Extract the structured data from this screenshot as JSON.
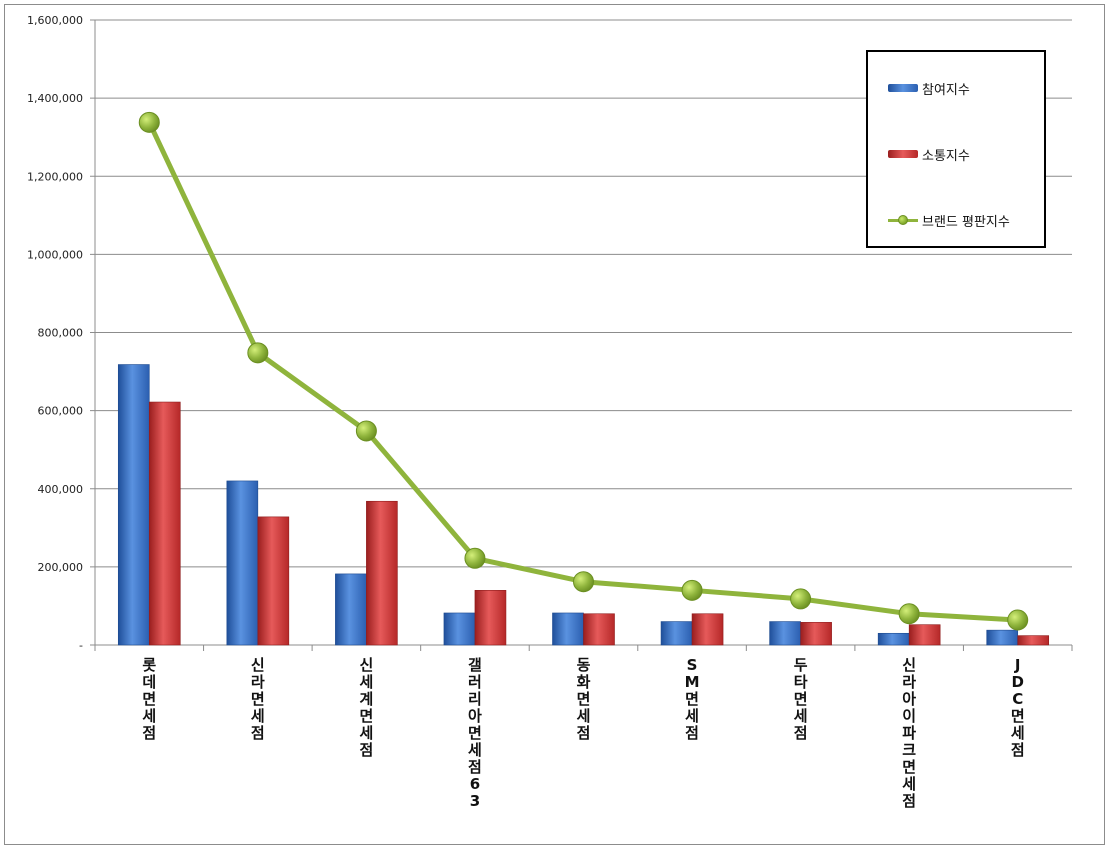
{
  "chart_data": {
    "type": "bar",
    "categories": [
      "롯데면세점",
      "신라면세점",
      "신세계면세점",
      "갤러리아면세점63",
      "동화면세점",
      "SM면세점",
      "두타면세점",
      "신라아이파크면세점",
      "JDC면세점"
    ],
    "series": [
      {
        "name": "참여지수",
        "type": "bar",
        "color": "#3a72c4",
        "values": [
          718000,
          420000,
          182000,
          82000,
          82000,
          60000,
          60000,
          30000,
          38000
        ]
      },
      {
        "name": "소통지수",
        "type": "bar",
        "color": "#d23a3a",
        "values": [
          622000,
          328000,
          368000,
          140000,
          80000,
          80000,
          58000,
          52000,
          24000
        ]
      },
      {
        "name": "브랜드 평판지수",
        "type": "line",
        "color": "#8fb43c",
        "values": [
          1338000,
          748000,
          548000,
          222000,
          162000,
          140000,
          118000,
          80000,
          64000
        ]
      }
    ],
    "ylim": [
      0,
      1600000
    ],
    "yticks": [
      0,
      200000,
      400000,
      600000,
      800000,
      1000000,
      1200000,
      1400000,
      1600000
    ],
    "ytick_labels": [
      "-",
      "200,000",
      "400,000",
      "600,000",
      "800,000",
      "1,000,000",
      "1,200,000",
      "1,400,000",
      "1,600,000"
    ],
    "grid": true,
    "legend_position": "top-right"
  }
}
